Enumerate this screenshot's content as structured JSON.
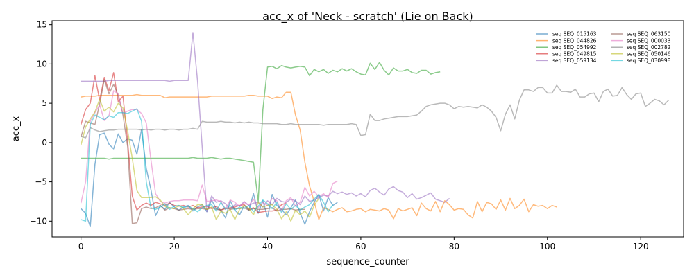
{
  "chart_data": {
    "type": "line",
    "title": "acc_x of 'Neck - scratch' (Lie on Back)",
    "xlabel": "sequence_counter",
    "ylabel": "acc_x",
    "xlim": [
      -6.2,
      129.2
    ],
    "ylim": [
      -12,
      15.5
    ],
    "xticks": [
      0,
      20,
      40,
      60,
      80,
      100,
      120
    ],
    "yticks": [
      -10,
      -5,
      0,
      5,
      10,
      15
    ],
    "grid": false,
    "legend": {
      "placement": "top-right",
      "columns": 2
    },
    "series": [
      {
        "name": "seq SEQ_015163",
        "color": "#1f77b4",
        "y": [
          -8.4,
          -9.0,
          -10.7,
          -2.8,
          1.0,
          1.2,
          -0.2,
          -0.8,
          1.1,
          0.0,
          0.5,
          0.3,
          -1.5,
          1.7,
          -3.3,
          -6.0,
          -9.3,
          -8.0,
          -8.5,
          -7.6,
          -8.2,
          -8.6,
          -8.2,
          -8.0,
          -8.7,
          -8.2,
          -7.9,
          -8.8,
          -7.3,
          -8.4,
          -8.6,
          -9.6,
          -7.4,
          -8.6,
          -9.2,
          -8.0,
          -8.6,
          -6.5,
          -9.0,
          -7.4,
          -9.5,
          -6.6,
          -8.0,
          -8.5,
          -9.2,
          -8.3,
          -7.3,
          -9.0,
          -10.4,
          -8.8,
          -7.6,
          -6.6,
          -8.7,
          -7.0,
          -8.0,
          -7.6
        ]
      },
      {
        "name": "seq SEQ_044826",
        "color": "#ff7f0e",
        "y": [
          5.8,
          5.9,
          5.9,
          5.9,
          6.0,
          6.0,
          6.0,
          6.0,
          6.0,
          6.0,
          6.0,
          6.0,
          6.1,
          6.0,
          6.0,
          6.0,
          6.0,
          6.0,
          5.7,
          5.8,
          5.8,
          5.8,
          5.8,
          5.8,
          5.8,
          5.8,
          5.8,
          5.8,
          5.9,
          5.9,
          5.9,
          5.9,
          5.9,
          5.9,
          5.9,
          5.9,
          6.0,
          6.0,
          5.9,
          5.9,
          5.9,
          5.6,
          5.8,
          5.7,
          6.4,
          6.4,
          3.5,
          1.6,
          -2.5,
          -5.5,
          -7.5,
          -9.8,
          -8.3,
          -8.5,
          -8.8,
          -8.5,
          -8.3,
          -8.8,
          -8.7,
          -8.5,
          -8.4,
          -8.8,
          -8.5,
          -8.6,
          -8.7,
          -8.4,
          -8.6,
          -9.7,
          -8.4,
          -8.7,
          -8.5,
          -8.3,
          -9.3,
          -7.7,
          -8.4,
          -8.7,
          -7.5,
          -8.8,
          -7.4,
          -7.9,
          -8.6,
          -8.4,
          -8.5,
          -9.2,
          -9.6,
          -7.5,
          -8.8,
          -7.6,
          -7.8,
          -8.5,
          -7.3,
          -8.6,
          -7.1,
          -8.4,
          -8.0,
          -7.2,
          -8.8,
          -7.9,
          -8.1,
          -8.0,
          -8.4,
          -8.0,
          -8.2
        ]
      },
      {
        "name": "seq SEQ_054992",
        "color": "#2ca02c",
        "y": [
          -2.0,
          -2.0,
          -2.0,
          -2.0,
          -2.0,
          -2.0,
          -2.1,
          -2.0,
          -2.0,
          -2.0,
          -2.0,
          -2.0,
          -2.0,
          -2.0,
          -2.0,
          -2.0,
          -2.0,
          -2.0,
          -2.0,
          -2.0,
          -2.0,
          -2.0,
          -2.0,
          -2.0,
          -1.9,
          -2.0,
          -2.0,
          -2.0,
          -1.9,
          -2.0,
          -2.1,
          -2.0,
          -2.0,
          -2.1,
          -2.2,
          -2.3,
          -2.4,
          -2.5,
          -7.5,
          4.2,
          9.6,
          9.7,
          9.4,
          9.8,
          9.6,
          9.5,
          9.6,
          9.7,
          9.6,
          8.5,
          9.3,
          9.0,
          9.3,
          8.8,
          9.2,
          9.0,
          9.4,
          9.1,
          9.4,
          9.0,
          8.7,
          8.6,
          10.1,
          9.3,
          10.2,
          9.2,
          8.6,
          9.5,
          9.1,
          9.1,
          9.3,
          8.9,
          8.8,
          9.2,
          9.2,
          8.7,
          8.9,
          9.0
        ]
      },
      {
        "name": "seq SEQ_049815",
        "color": "#d62728",
        "y": [
          2.3,
          4.2,
          5.0,
          8.5,
          5.4,
          8.3,
          6.6,
          8.9,
          5.2,
          5.9,
          0.2,
          -6.8,
          -8.6,
          -8.0,
          -7.7,
          -8.0,
          -7.6,
          -7.8,
          -8.0,
          -7.7,
          -8.0,
          -8.1,
          -8.0,
          -8.2,
          -8.0,
          -8.3,
          -8.2,
          -8.1,
          -8.4,
          -8.1,
          -8.6,
          -8.4,
          -8.3,
          -8.2,
          -8.0,
          -7.9,
          -8.5,
          -8.3,
          -8.9,
          -8.8,
          -8.7,
          -8.7,
          -8.6,
          -7.9,
          -7.7
        ]
      },
      {
        "name": "seq SEQ_059134",
        "color": "#9467bd",
        "y": [
          7.8,
          7.8,
          7.8,
          7.8,
          7.8,
          7.8,
          7.9,
          7.9,
          7.9,
          7.9,
          7.9,
          7.9,
          7.9,
          7.9,
          7.9,
          7.9,
          7.9,
          7.9,
          7.9,
          7.8,
          7.9,
          7.9,
          7.9,
          7.9,
          14.0,
          7.8,
          -0.6,
          -8.8,
          -6.8,
          -7.6,
          -7.4,
          -7.8,
          -8.5,
          -7.9,
          -8.1,
          -7.5,
          -8.0,
          -7.7,
          -7.6,
          -8.2,
          -7.4,
          -7.9,
          -7.1,
          -7.5,
          -7.6,
          -7.2,
          -7.4,
          -7.9,
          -6.8,
          -7.5,
          -7.3,
          -7.0,
          -6.7,
          -6.8,
          -6.2,
          -6.5,
          -6.3,
          -6.6,
          -6.4,
          -6.8,
          -6.5,
          -6.9,
          -6.1,
          -5.8,
          -6.3,
          -6.7,
          -5.9,
          -5.6,
          -6.1,
          -6.3,
          -7.0,
          -6.5,
          -7.2,
          -7.0,
          -6.7,
          -6.4,
          -7.2,
          -7.4,
          -7.6,
          -7.1
        ]
      },
      {
        "name": "seq SEQ_063150",
        "color": "#8c564b",
        "y": [
          0.7,
          2.7,
          2.5,
          2.3,
          4.9,
          8.0,
          6.2,
          7.4,
          6.0,
          3.5,
          -0.5,
          -10.3,
          -10.2,
          -8.4,
          -8.2,
          -8.4,
          -8.3,
          -8.0,
          -8.6,
          -8.3,
          -8.4,
          -8.6,
          -8.5,
          -8.4,
          -8.5,
          -8.4,
          -8.4,
          -8.5,
          -8.3,
          -8.5,
          -8.6,
          -8.3,
          -8.5,
          -8.4,
          -8.4,
          -8.3,
          -8.6,
          -8.4,
          -8.5,
          -8.5,
          -8.4,
          -8.3,
          -8.7,
          -8.5,
          -8.5,
          -8.4,
          -8.6,
          -8.5,
          -8.5
        ]
      },
      {
        "name": "seq SEQ_000033",
        "color": "#e377c2",
        "y": [
          -7.7,
          -5.0,
          2.7,
          3.8,
          4.8,
          2.8,
          3.4,
          6.6,
          6.2,
          3.7,
          4.0,
          4.2,
          4.2,
          3.7,
          2.5,
          -2.2,
          -6.5,
          -7.5,
          -7.7,
          -7.5,
          -7.4,
          -7.4,
          -7.3,
          -7.3,
          -7.3,
          -7.4,
          -5.4,
          -7.5,
          -7.4,
          -7.3,
          -7.5,
          -8.5,
          -7.3,
          -7.6,
          -8.1,
          -7.6,
          -8.0,
          -7.2,
          -8.3,
          -7.6,
          -8.0,
          -7.1,
          -7.4,
          -8.7,
          -7.4,
          -7.0,
          -8.1,
          -7.6,
          -5.7,
          -6.8,
          -6.2,
          -6.9,
          -6.5,
          -7.0,
          -5.2,
          -4.9
        ]
      },
      {
        "name": "seq SEQ_002782",
        "color": "#7f7f7f",
        "y": [
          0.8,
          0.6,
          1.9,
          1.6,
          1.4,
          1.5,
          1.6,
          1.6,
          1.7,
          1.7,
          1.7,
          1.7,
          1.7,
          1.6,
          1.7,
          1.6,
          1.7,
          1.7,
          1.6,
          1.7,
          1.7,
          1.6,
          1.7,
          1.7,
          1.8,
          1.7,
          2.7,
          2.6,
          2.6,
          2.6,
          2.7,
          2.6,
          2.6,
          2.5,
          2.6,
          2.5,
          2.6,
          2.5,
          2.5,
          2.4,
          2.4,
          2.4,
          2.4,
          2.3,
          2.3,
          2.4,
          2.3,
          2.3,
          2.3,
          2.3,
          2.3,
          2.3,
          2.2,
          2.3,
          2.3,
          2.3,
          2.3,
          2.3,
          2.4,
          2.3,
          0.9,
          1.0,
          3.6,
          2.8,
          2.8,
          3.0,
          3.1,
          3.2,
          3.3,
          3.3,
          3.3,
          3.4,
          3.5,
          4.0,
          4.6,
          4.8,
          4.9,
          5.0,
          5.0,
          4.8,
          4.3,
          4.6,
          4.5,
          4.6,
          4.5,
          4.4,
          4.8,
          4.5,
          4.0,
          3.2,
          1.5,
          3.6,
          4.8,
          3.0,
          5.4,
          6.7,
          6.7,
          6.5,
          7.0,
          7.0,
          6.3,
          6.3,
          7.3,
          6.5,
          6.5,
          6.4,
          6.8,
          5.8,
          5.8,
          6.2,
          6.3,
          5.2,
          6.5,
          6.8,
          5.9,
          6.0,
          7.0,
          6.1,
          5.5,
          6.2,
          6.3,
          4.6,
          5.0,
          5.5,
          5.3,
          4.8,
          5.4
        ]
      },
      {
        "name": "seq SEQ_050146",
        "color": "#bcbd22",
        "y": [
          -0.3,
          2.0,
          3.0,
          3.9,
          5.5,
          4.0,
          4.5,
          3.9,
          5.0,
          4.4,
          1.5,
          -2.0,
          -6.1,
          -7.0,
          -7.0,
          -7.0,
          -6.9,
          -7.3,
          -8.1,
          -8.3,
          -8.4,
          -8.0,
          -8.4,
          -9.2,
          -8.4,
          -7.9,
          -7.9,
          -8.5,
          -8.2,
          -9.8,
          -8.7,
          -9.0,
          -8.5,
          -9.8,
          -8.5,
          -8.0,
          -8.4,
          -9.2,
          -7.6,
          -8.2,
          -8.0,
          -7.9,
          -8.5,
          -9.7,
          -8.8,
          -10.0,
          -8.6,
          -9.2,
          -8.7,
          -9.5,
          -8.0,
          -7.1
        ]
      },
      {
        "name": "seq SEQ_030998",
        "color": "#17becf",
        "y": [
          -9.8,
          -10.0,
          2.3,
          3.5,
          3.2,
          2.9,
          3.4,
          3.2,
          3.8,
          3.8,
          3.7,
          4.0,
          4.3,
          2.7,
          -5.0,
          -8.3,
          -8.5,
          -8.2,
          -7.8,
          -8.5,
          -8.1,
          -8.0,
          -8.3,
          -8.1,
          -8.4,
          -8.8,
          -8.3,
          -8.0,
          -7.9,
          -8.7,
          -7.6,
          -8.5,
          -8.0,
          -8.6,
          -8.2,
          -8.4,
          -8.0,
          -8.8,
          -8.1,
          -7.3,
          -7.8,
          -8.4,
          -7.6,
          -8.9,
          -7.8,
          -8.5,
          -8.0,
          -8.6,
          -8.2,
          -7.9,
          -7.2,
          -6.6,
          -7.6,
          -8.8,
          -7.9
        ]
      }
    ]
  }
}
